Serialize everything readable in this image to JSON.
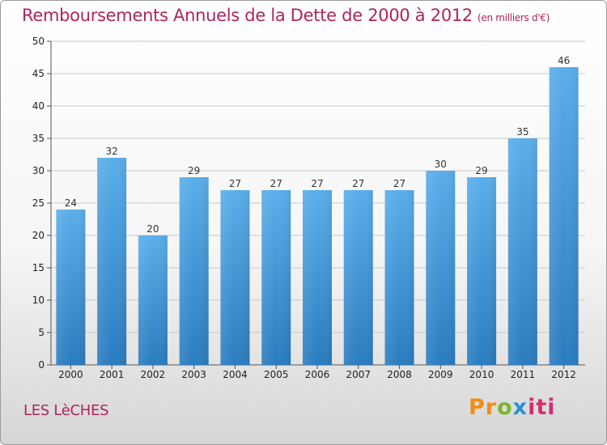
{
  "chart_data": {
    "type": "bar",
    "title": "Remboursements Annuels de la Dette de 2000 à 2012",
    "subtitle": "(en milliers d'€)",
    "categories": [
      "2000",
      "2001",
      "2002",
      "2003",
      "2004",
      "2005",
      "2006",
      "2007",
      "2008",
      "2009",
      "2010",
      "2011",
      "2012"
    ],
    "values": [
      24,
      32,
      20,
      29,
      27,
      27,
      27,
      27,
      27,
      30,
      29,
      35,
      46
    ],
    "ylim": [
      0,
      50
    ],
    "yticks": [
      0,
      5,
      10,
      15,
      20,
      25,
      30,
      35,
      40,
      45,
      50
    ],
    "grid": "horizontal",
    "bar_color_top": "#5aaeea",
    "bar_color_bottom": "#2a7cbf"
  },
  "footer": {
    "commune": "LES LèCHES",
    "logo_parts": [
      "Pr",
      "o",
      "x",
      "iti"
    ]
  },
  "colors": {
    "title": "#b0245e",
    "grid": "#c8c8c8",
    "axis": "#555555"
  }
}
